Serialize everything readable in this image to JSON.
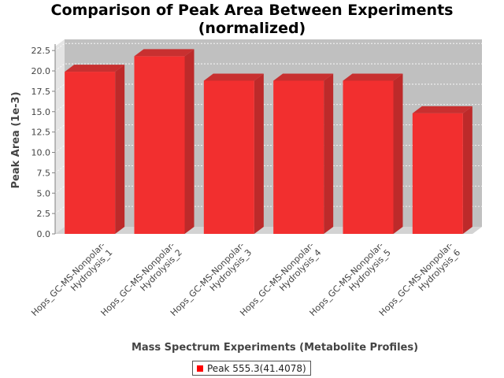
{
  "chart_data": {
    "type": "bar",
    "title": [
      "Comparison of Peak Area Between Experiments",
      "(normalized)"
    ],
    "xlabel": "Mass Spectrum Experiments (Metabolite Profiles)",
    "ylabel": "Peak Area (1e-3)",
    "ylim": [
      0,
      23
    ],
    "yticks": [
      "0.0",
      "2.5",
      "5.0",
      "7.5",
      "10.0",
      "12.5",
      "15.0",
      "17.5",
      "20.0",
      "22.5"
    ],
    "categories": [
      [
        "Hops_GC-MS-Nonpolar-",
        "Hydrolysis_1"
      ],
      [
        "Hops_GC-MS-Nonpolar-",
        "Hydrolysis_2"
      ],
      [
        "Hops_GC-MS-Nonpolar-",
        "Hydrolysis_3"
      ],
      [
        "Hops_GC-MS-Nonpolar-",
        "Hydrolysis_4"
      ],
      [
        "Hops_GC-MS-Nonpolar-",
        "Hydrolysis_5"
      ],
      [
        "Hops_GC-MS-Nonpolar-",
        "Hydrolysis_6"
      ]
    ],
    "series": [
      {
        "name": "Peak 555.3(41.4078)",
        "values": [
          19.9,
          21.8,
          18.8,
          18.8,
          18.8,
          14.8
        ],
        "color": "#ff0000"
      }
    ],
    "grid": true,
    "legend_position": "bottom",
    "plot_background": "#c0c0c0",
    "floor_color": "#d3d3d3"
  }
}
